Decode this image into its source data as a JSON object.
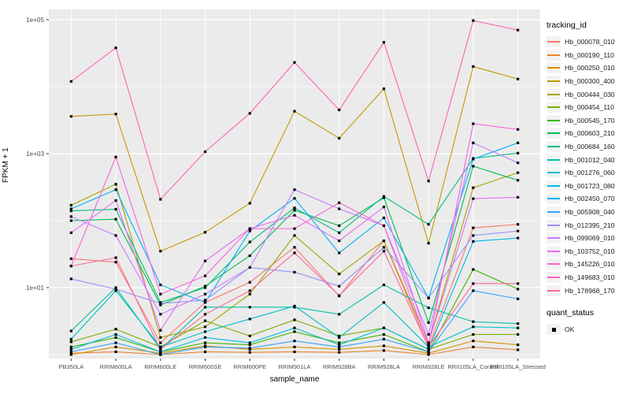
{
  "chart_data": {
    "type": "line",
    "title": "",
    "xlabel": "sample_name",
    "ylabel": "FPKM + 1",
    "x_categories": [
      "PB350LA",
      "RRIM600LA",
      "RRIM600LE",
      "RRIM600SE",
      "RRIM600PE",
      "RRIM901LA",
      "RRIM928BA",
      "RRIM928LA",
      "RRIM928LE",
      "RRII105LA_Control",
      "RRII105LA_Stressed"
    ],
    "y_axis": {
      "scale": "log10",
      "tick_labels": [
        "1e+01",
        "1e+03",
        "1e+05"
      ],
      "tick_values": [
        10,
        1000,
        100000
      ],
      "minor_values": [
        1,
        100,
        10000
      ],
      "range": [
        0.9,
        150000
      ]
    },
    "legend": {
      "title": "tracking_id",
      "position": "right"
    },
    "quant_legend": {
      "title": "quant_status",
      "items": [
        "OK"
      ]
    },
    "colors": {
      "panel_bg": "#EBEBEB",
      "grid": "#FFFFFF",
      "point": "#000000",
      "axis_text": "#4D4D4D",
      "tick_mark": "#333333",
      "legend_key_bg": "#F2F2F2"
    },
    "series": [
      {
        "name": "Hb_000078_010",
        "color": "#F8766D",
        "values": [
          27,
          24,
          1.5,
          6,
          12,
          40,
          7.5,
          50,
          1.3,
          78,
          88
        ]
      },
      {
        "name": "Hb_000190_110",
        "color": "#EA8331",
        "values": [
          1.05,
          1.1,
          1.0,
          1.1,
          1.08,
          1.1,
          1.08,
          1.15,
          1.0,
          1.3,
          1.18
        ]
      },
      {
        "name": "Hb_000250_010",
        "color": "#D89000",
        "values": [
          1.0,
          1.3,
          1.05,
          1.35,
          1.2,
          1.3,
          1.2,
          1.35,
          1.05,
          1.6,
          1.4
        ]
      },
      {
        "name": "Hb_000300_400",
        "color": "#C09B00",
        "values": [
          3600,
          3900,
          35,
          67,
          182,
          4300,
          1700,
          9300,
          46,
          20000,
          13000
        ]
      },
      {
        "name": "Hb_000444_030",
        "color": "#A3A500",
        "values": [
          170,
          350,
          1.8,
          2.6,
          8,
          60,
          16,
          50,
          1.5,
          310,
          520
        ]
      },
      {
        "name": "Hb_000454_110",
        "color": "#7CAE00",
        "values": [
          1.55,
          2.4,
          1.3,
          3.2,
          1.9,
          3.3,
          1.9,
          2.5,
          1.2,
          2.0,
          2.0
        ]
      },
      {
        "name": "Hb_000545_170",
        "color": "#39B600",
        "values": [
          1.3,
          1.8,
          1.1,
          1.5,
          1.4,
          2.2,
          1.5,
          2.0,
          1.1,
          18.7,
          9.5
        ]
      },
      {
        "name": "Hb_000603_210",
        "color": "#00BB4E",
        "values": [
          100,
          105,
          5.5,
          10.5,
          30,
          143,
          84,
          220,
          3,
          650,
          400
        ]
      },
      {
        "name": "Hb_000684_160",
        "color": "#00BF7D",
        "values": [
          140,
          148,
          6,
          10,
          48,
          155,
          66,
          230,
          88,
          850,
          1020
        ]
      },
      {
        "name": "Hb_001012_040",
        "color": "#00C1A3",
        "values": [
          2.25,
          10,
          1.2,
          5.1,
          5.1,
          5.1,
          4.0,
          11,
          5,
          3.1,
          2.9
        ]
      },
      {
        "name": "Hb_001276_060",
        "color": "#00BFC4",
        "values": [
          1.7,
          9,
          1.3,
          2.2,
          3.4,
          5.3,
          1.8,
          6,
          1.3,
          2.6,
          2.5
        ]
      },
      {
        "name": "Hb_001723_080",
        "color": "#00BAE0",
        "values": [
          1.2,
          2.0,
          1.1,
          1.8,
          1.5,
          2.5,
          1.4,
          2.5,
          1.2,
          49,
          55
        ]
      },
      {
        "name": "Hb_002450_070",
        "color": "#00B0F6",
        "values": [
          150,
          290,
          11,
          6,
          70,
          215,
          33,
          110,
          7,
          830,
          1450
        ]
      },
      {
        "name": "Hb_005908_040",
        "color": "#35A2FF",
        "values": [
          1.1,
          1.5,
          1.0,
          1.3,
          1.25,
          1.6,
          1.3,
          1.7,
          1.1,
          9,
          6.8
        ]
      },
      {
        "name": "Hb_012395_210",
        "color": "#9590FF",
        "values": [
          13.5,
          9.5,
          5.8,
          6.5,
          20,
          17,
          10.5,
          40,
          7,
          60,
          70
        ]
      },
      {
        "name": "Hb_099069_010",
        "color": "#C77CFF",
        "values": [
          115,
          60,
          4,
          8,
          20,
          290,
          150,
          84,
          2,
          1450,
          730
        ]
      },
      {
        "name": "Hb_103752_010",
        "color": "#E76BF3",
        "values": [
          66,
          200,
          2.3,
          25,
          76,
          120,
          50,
          160,
          1.5,
          213,
          223
        ]
      },
      {
        "name": "Hb_145226_010",
        "color": "#FA62DB",
        "values": [
          21,
          890,
          8,
          15,
          76,
          76,
          185,
          84,
          1.4,
          2800,
          2300
        ]
      },
      {
        "name": "Hb_149683_010",
        "color": "#FF62BC",
        "values": [
          12000,
          38000,
          208,
          1070,
          4000,
          23000,
          4500,
          46000,
          390,
          97000,
          70000
        ]
      },
      {
        "name": "Hb_178968_170",
        "color": "#FF6A98",
        "values": [
          21,
          28,
          1.2,
          4,
          9,
          33,
          7.6,
          35,
          1.3,
          11.5,
          11.5
        ]
      }
    ]
  }
}
